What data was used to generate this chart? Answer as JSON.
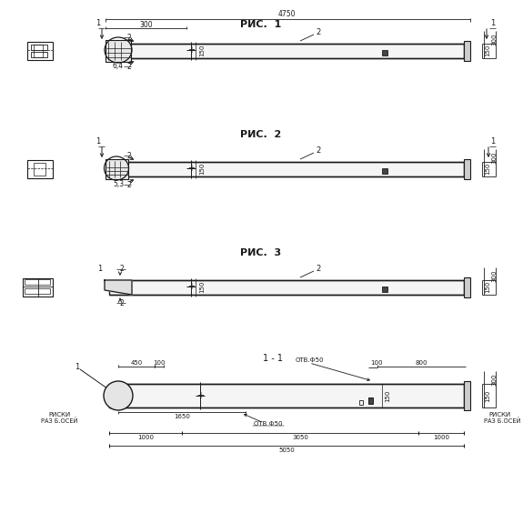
{
  "bg_color": "#ffffff",
  "line_color": "#1a1a1a",
  "fig1_title": "РИС.  1",
  "fig2_title": "РИС.  2",
  "fig3_title": "РИС.  3",
  "sec_title": "1 - 1",
  "beam_fc": "#f5f5f5",
  "endplate_fc": "#cccccc",
  "dark_fc": "#444444"
}
